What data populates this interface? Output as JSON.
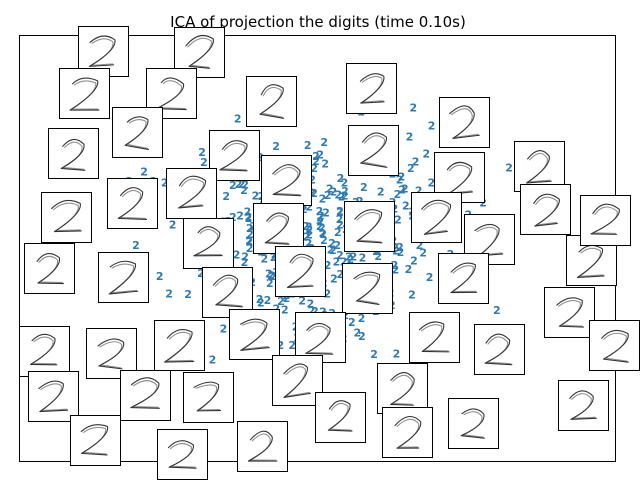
{
  "chart_data": {
    "type": "scatter",
    "title": "ICA of projection the digits (time 0.10s)",
    "xlabel": "",
    "ylabel": "",
    "xlim": [
      0,
      1
    ],
    "ylim": [
      0,
      1
    ],
    "grid": false,
    "axes_ticks": false,
    "marker_text": "2",
    "marker_color": "#2c7bb6",
    "thumbnail_glyph": "handwritten-digit-2",
    "thumbnail_count": 52,
    "point_count": 360
  }
}
